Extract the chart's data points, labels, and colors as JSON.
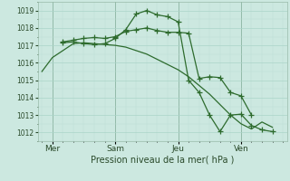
{
  "xlabel": "Pression niveau de la mer( hPa )",
  "ylim": [
    1011.5,
    1019.5
  ],
  "yticks": [
    1012,
    1013,
    1014,
    1015,
    1016,
    1017,
    1018,
    1019
  ],
  "bg_color": "#cce8e0",
  "grid_major_color": "#aad4c8",
  "grid_minor_color": "#bbddd5",
  "line_color": "#2d6b2d",
  "vline_color": "#446644",
  "xtick_labels": [
    "Mer",
    "Sam",
    "Jeu",
    "Ven"
  ],
  "xtick_positions": [
    1,
    4,
    7,
    10
  ],
  "xlim": [
    0.3,
    12.2
  ],
  "vline_positions": [
    1,
    4,
    7,
    10
  ],
  "line1_x": [
    0.5,
    1.0,
    1.5,
    2.0,
    2.5,
    3.0,
    3.5,
    4.0,
    4.5,
    5.0,
    5.5,
    6.0,
    6.5,
    7.0,
    7.5,
    8.0,
    8.5,
    9.0,
    9.5,
    10.0,
    10.5,
    11.0,
    11.5
  ],
  "line1_y": [
    1015.5,
    1016.3,
    1016.7,
    1017.1,
    1017.15,
    1017.1,
    1017.05,
    1017.0,
    1016.9,
    1016.7,
    1016.5,
    1016.2,
    1015.9,
    1015.6,
    1015.2,
    1014.7,
    1014.2,
    1013.6,
    1013.0,
    1012.5,
    1012.2,
    1012.6,
    1012.3
  ],
  "line2_x": [
    1.5,
    2.0,
    2.5,
    3.0,
    3.5,
    4.0,
    4.5,
    5.0,
    5.5,
    6.0,
    6.5,
    7.0,
    7.5,
    8.0,
    8.5,
    9.0,
    9.5,
    10.0,
    10.5
  ],
  "line2_y": [
    1017.2,
    1017.3,
    1017.4,
    1017.45,
    1017.4,
    1017.5,
    1017.8,
    1017.9,
    1018.0,
    1017.85,
    1017.75,
    1017.75,
    1017.7,
    1015.1,
    1015.2,
    1015.15,
    1014.3,
    1014.1,
    1013.0
  ],
  "line3_x": [
    1.5,
    2.0,
    2.5,
    3.0,
    3.5,
    4.0,
    4.5,
    5.0,
    5.5,
    6.0,
    6.5,
    7.0,
    7.5,
    8.0,
    8.5,
    9.0,
    9.5,
    10.0,
    10.5,
    11.0,
    11.5
  ],
  "line3_y": [
    1017.15,
    1017.2,
    1017.1,
    1017.05,
    1017.1,
    1017.4,
    1017.9,
    1018.8,
    1019.0,
    1018.75,
    1018.65,
    1018.35,
    1015.0,
    1014.3,
    1013.0,
    1012.05,
    1013.0,
    1013.05,
    1012.4,
    1012.15,
    1012.05
  ],
  "marker": "+",
  "marker_size": 4
}
